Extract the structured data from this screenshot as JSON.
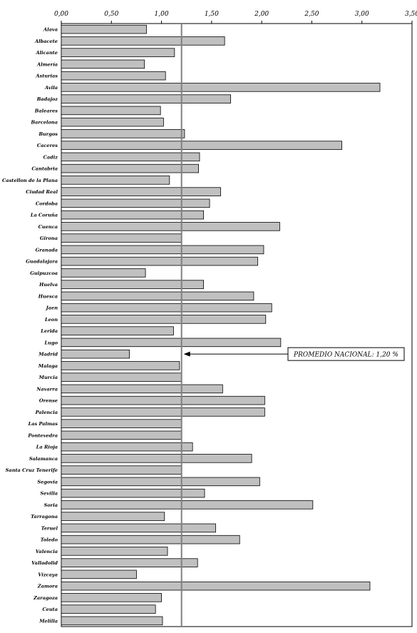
{
  "chart_data": {
    "type": "bar",
    "orientation": "horizontal",
    "title": "",
    "xlabel": "",
    "ylabel": "",
    "xlim": [
      0,
      3.5
    ],
    "x_ticks": [
      "0,00",
      "0,50",
      "1,00",
      "1,50",
      "2,00",
      "2,50",
      "3,00",
      "3,50"
    ],
    "grid": false,
    "legend": "none",
    "bar_color": "#c0c0c0",
    "reference_line": {
      "value": 1.2,
      "label": "PROMEDIO NACIONAL: 1,20 %",
      "color": "#808080"
    },
    "categories": [
      "Alava",
      "Albacete",
      "Alicante",
      "Almería",
      "Asturias",
      "Avila",
      "Badajoz",
      "Baleares",
      "Barcelona",
      "Burgos",
      "Caceres",
      "Cadiz",
      "Cantabria",
      "Castellon de la Plana",
      "Ciudad Real",
      "Cordoba",
      "La Coruña",
      "Cuenca",
      "Girona",
      "Granada",
      "Guadalajara",
      "Guipuzcoa",
      "Huelva",
      "Huesca",
      "Jaen",
      "Leon",
      "Lerida",
      "Lugo",
      "Madrid",
      "Malaga",
      "Murcia",
      "Navarra",
      "Orense",
      "Palencia",
      "Las Palmas",
      "Pontevedra",
      "La Rioja",
      "Salamanca",
      "Santa Cruz Tenerife",
      "Segovia",
      "Sevilla",
      "Soria",
      "Tarragona",
      "Teruel",
      "Toledo",
      "Valencia",
      "Valladolid",
      "Vizcaya",
      "Zamora",
      "Zaragoza",
      "Ceuta",
      "Melilla"
    ],
    "values": [
      0.85,
      1.63,
      1.13,
      0.83,
      1.04,
      3.18,
      1.69,
      0.99,
      1.02,
      1.23,
      2.8,
      1.38,
      1.37,
      1.08,
      1.59,
      1.48,
      1.42,
      2.18,
      1.2,
      2.02,
      1.96,
      0.84,
      1.42,
      1.92,
      2.1,
      2.04,
      1.12,
      2.19,
      0.68,
      1.18,
      1.2,
      1.61,
      2.03,
      2.03,
      1.2,
      1.2,
      1.31,
      1.9,
      1.2,
      1.98,
      1.43,
      2.51,
      1.03,
      1.54,
      1.78,
      1.06,
      1.36,
      0.75,
      3.08,
      1.0,
      0.94,
      1.01
    ]
  }
}
